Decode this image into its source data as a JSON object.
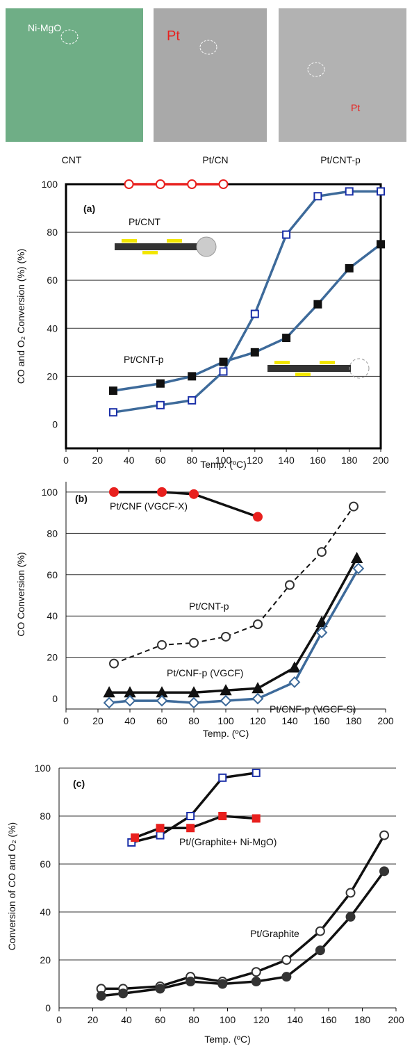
{
  "images": [
    {
      "caption": "CNT",
      "label": "Ni-MgO"
    },
    {
      "caption": "Pt/CN",
      "label": "Pt"
    },
    {
      "caption": "Pt/CNT-p",
      "label": "Pt"
    }
  ],
  "chart_data": [
    {
      "type": "line",
      "x_label": "Temp. (ºC)",
      "y_label": "CO and O₂ Conversion (%) (%)",
      "annotations": [
        "(a)",
        "Pt/CNT",
        "Pt/CNT-p"
      ],
      "xlim": [
        0,
        200
      ],
      "ylim": [
        -10,
        100
      ],
      "xticks": [
        0,
        20,
        40,
        60,
        80,
        100,
        120,
        140,
        160,
        180,
        200
      ],
      "yticks": [
        0,
        20,
        40,
        60,
        80,
        100
      ],
      "grid": true,
      "series": [
        {
          "color": "#e8201e",
          "marker": "circle",
          "filled": false,
          "line_color": "#e8201e",
          "x": [
            40,
            60,
            80,
            100
          ],
          "values": [
            100,
            100,
            100,
            100
          ]
        },
        {
          "color": "#1a2fa8",
          "marker": "square",
          "filled": false,
          "line_color": "#3d6a9a",
          "x": [
            30,
            60,
            80,
            100,
            120,
            140,
            160,
            180,
            200
          ],
          "values": [
            5,
            8,
            10,
            22,
            46,
            79,
            95,
            97,
            97
          ]
        },
        {
          "color": "#111111",
          "marker": "square",
          "filled": true,
          "line_color": "#3d6a9a",
          "x": [
            30,
            60,
            80,
            100,
            120,
            140,
            160,
            180,
            200
          ],
          "values": [
            14,
            17,
            20,
            26,
            30,
            36,
            50,
            65,
            75
          ]
        }
      ]
    },
    {
      "type": "line",
      "x_label": "Temp. (ºC)",
      "y_label": "CO Conversion (%)",
      "annotations": [
        "(b)",
        "Pt/CNF (VGCF-X)",
        "Pt/CNT-p",
        "Pt/CNF-p (VGCF)",
        "Pt/CNF-p (VGCF-S)"
      ],
      "xlim": [
        0,
        200
      ],
      "ylim": [
        -5,
        105
      ],
      "xticks": [
        0,
        20,
        40,
        60,
        80,
        100,
        120,
        140,
        160,
        180,
        200
      ],
      "yticks": [
        0,
        20,
        40,
        60,
        80,
        100
      ],
      "grid": true,
      "series": [
        {
          "color": "#e8201e",
          "marker": "circle",
          "filled": true,
          "line_color": "#111111",
          "x": [
            30,
            60,
            80,
            120
          ],
          "values": [
            100,
            100,
            99,
            88
          ]
        },
        {
          "color": "#333333",
          "marker": "circle",
          "filled": false,
          "line_color": "#111111",
          "dashed": true,
          "x": [
            30,
            60,
            80,
            100,
            120,
            140,
            160,
            180
          ],
          "values": [
            17,
            26,
            27,
            30,
            36,
            55,
            71,
            93
          ]
        },
        {
          "color": "#111111",
          "marker": "triangle",
          "filled": true,
          "line_color": "#111111",
          "x": [
            27,
            40,
            60,
            80,
            100,
            120,
            143,
            160,
            182
          ],
          "values": [
            3,
            3,
            3,
            3,
            4,
            5,
            15,
            37,
            68
          ]
        },
        {
          "color": "#3d6a9a",
          "marker": "diamond",
          "filled": false,
          "line_color": "#3d6a9a",
          "x": [
            27,
            40,
            60,
            80,
            100,
            120,
            143,
            160,
            183
          ],
          "values": [
            -2,
            -1,
            -1,
            -2,
            -1,
            0,
            8,
            32,
            63
          ]
        }
      ]
    },
    {
      "type": "line",
      "x_label": "Temp. (ºC)",
      "y_label": "Conversion of CO and O₂ (%)",
      "annotations": [
        "(c)",
        "Pt/(Graphite+ Ni-MgO)",
        "Pt/Graphite"
      ],
      "xlim": [
        0,
        200
      ],
      "ylim": [
        0,
        100
      ],
      "xticks": [
        0,
        20,
        40,
        60,
        80,
        100,
        120,
        140,
        160,
        180,
        200
      ],
      "yticks": [
        0,
        20,
        40,
        60,
        80,
        100
      ],
      "grid": true,
      "series": [
        {
          "color": "#1a2fa8",
          "marker": "square",
          "filled": false,
          "line_color": "#111111",
          "x": [
            43,
            60,
            78,
            97,
            117
          ],
          "values": [
            69,
            72,
            80,
            96,
            98
          ]
        },
        {
          "color": "#e8201e",
          "marker": "square",
          "filled": true,
          "line_color": "#111111",
          "x": [
            45,
            60,
            78,
            97,
            117
          ],
          "values": [
            71,
            75,
            75,
            80,
            79
          ]
        },
        {
          "color": "#333333",
          "marker": "circle",
          "filled": false,
          "line_color": "#111111",
          "x": [
            25,
            38,
            60,
            78,
            97,
            117,
            135,
            155,
            173,
            193
          ],
          "values": [
            8,
            8,
            9,
            13,
            11,
            15,
            20,
            32,
            48,
            72
          ]
        },
        {
          "color": "#333333",
          "marker": "circle",
          "filled": true,
          "line_color": "#111111",
          "x": [
            25,
            38,
            60,
            78,
            97,
            117,
            135,
            155,
            173,
            193
          ],
          "values": [
            5,
            6,
            8,
            11,
            10,
            11,
            13,
            24,
            38,
            57
          ]
        }
      ]
    }
  ]
}
